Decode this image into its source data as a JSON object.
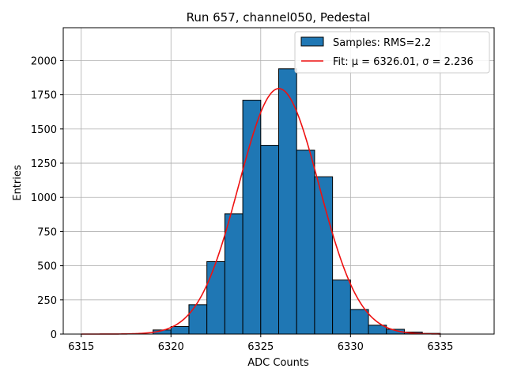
{
  "chart_data": {
    "type": "bar",
    "subtype": "histogram",
    "title": "Run 657, channel050, Pedestal",
    "xlabel": "ADC Counts",
    "ylabel": "Entries",
    "xlim": [
      6314,
      6338
    ],
    "ylim": [
      0,
      2240
    ],
    "grid": true,
    "xticks": [
      6315,
      6320,
      6325,
      6330,
      6335
    ],
    "yticks": [
      0,
      250,
      500,
      750,
      1000,
      1250,
      1500,
      1750,
      2000
    ],
    "bin_width": 1,
    "bins": [
      {
        "left": 6315,
        "count": 0
      },
      {
        "left": 6316,
        "count": 0
      },
      {
        "left": 6317,
        "count": 0
      },
      {
        "left": 6318,
        "count": 0
      },
      {
        "left": 6319,
        "count": 30
      },
      {
        "left": 6320,
        "count": 55
      },
      {
        "left": 6321,
        "count": 215
      },
      {
        "left": 6322,
        "count": 530
      },
      {
        "left": 6323,
        "count": 880
      },
      {
        "left": 6324,
        "count": 1710
      },
      {
        "left": 6325,
        "count": 1380
      },
      {
        "left": 6326,
        "count": 1940
      },
      {
        "left": 6327,
        "count": 1345
      },
      {
        "left": 6328,
        "count": 1150
      },
      {
        "left": 6329,
        "count": 395
      },
      {
        "left": 6330,
        "count": 180
      },
      {
        "left": 6331,
        "count": 65
      },
      {
        "left": 6332,
        "count": 35
      },
      {
        "left": 6333,
        "count": 15
      },
      {
        "left": 6334,
        "count": 5
      },
      {
        "left": 6335,
        "count": 0
      },
      {
        "left": 6336,
        "count": 0
      }
    ],
    "fit": {
      "type": "gaussian",
      "mu": 6326.01,
      "sigma": 2.236,
      "amplitude": 1795,
      "x_range": [
        6315,
        6335
      ],
      "color": "#ee1111"
    },
    "series": [
      {
        "name": "Samples: RMS=2.2",
        "color": "#1f77b4",
        "edge_color": "#000000"
      },
      {
        "name": "Fit: μ = 6326.01, σ = 2.236",
        "color": "#ee1111"
      }
    ],
    "legend": {
      "placement": "top-right",
      "entries": [
        "Samples: RMS=2.2",
        "Fit: μ = 6326.01, σ = 2.236"
      ]
    }
  }
}
